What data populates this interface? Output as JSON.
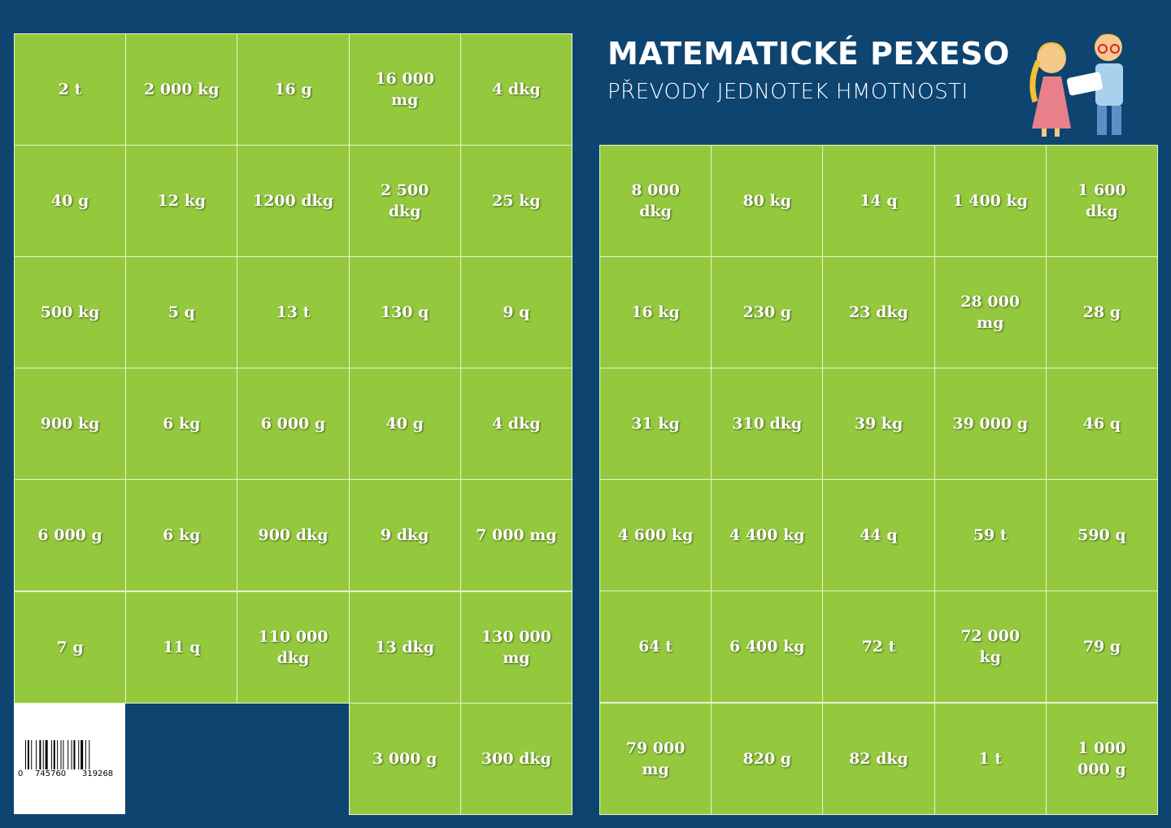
{
  "header": {
    "title": "MATEMATICKÉ PEXESO",
    "subtitle": "PŘEVODY JEDNOTEK HMOTNOSTI"
  },
  "left_grid": {
    "rows": [
      [
        "2 t",
        "2 000 kg",
        "16 g",
        "16 000 mg",
        "4 dkg"
      ],
      [
        "40 g",
        "12 kg",
        "1200 dkg",
        "2 500 dkg",
        "25 kg"
      ],
      [
        "500 kg",
        "5 q",
        "13 t",
        "130 q",
        "9 q"
      ],
      [
        "900 kg",
        "6 kg",
        "6 000 g",
        "40 g",
        "4 dkg"
      ],
      [
        "6 000 g",
        "6 kg",
        "900 dkg",
        "9 dkg",
        "7 000 mg"
      ],
      [
        "7 g",
        "11 q",
        "110 000 dkg",
        "13 dkg",
        "130 000 mg"
      ]
    ],
    "bottom_row": [
      "3 000 g",
      "300 dkg"
    ]
  },
  "right_grid": {
    "rows": [
      [
        "8 000 dkg",
        "80 kg",
        "14 q",
        "1 400 kg",
        "1 600 dkg"
      ],
      [
        "16 kg",
        "230 g",
        "23 dkg",
        "28 000 mg",
        "28 g"
      ],
      [
        "31 kg",
        "310 dkg",
        "39 kg",
        "39 000 g",
        "46 q"
      ],
      [
        "4 600 kg",
        "4 400 kg",
        "44 q",
        "59 t",
        "590 q"
      ],
      [
        "64 t",
        "6 400 kg",
        "72 t",
        "72 000 kg",
        "79 g"
      ],
      [
        "79 000 mg",
        "820 g",
        "82 dkg",
        "1 t",
        "1 000 000 g"
      ]
    ]
  },
  "barcode": {
    "digits": [
      "0",
      "745760",
      "319268"
    ]
  }
}
